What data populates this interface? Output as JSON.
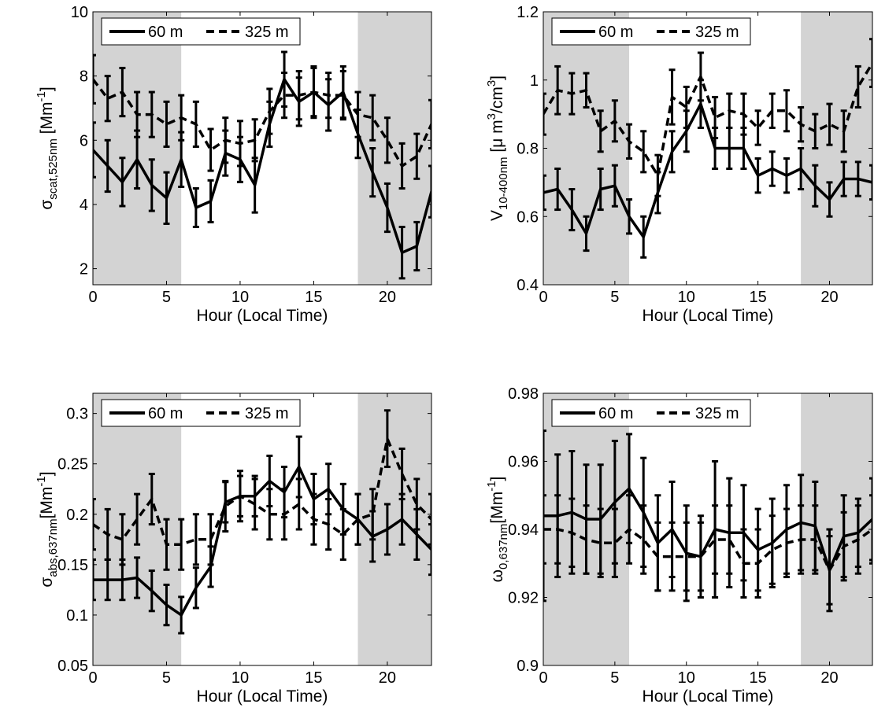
{
  "chart_data": [
    {
      "type": "line",
      "ylabel": "σ_scat,525nm [Mm^-1]",
      "ylabel_parts": {
        "sym": "σ",
        "sub": "scat,525nm",
        "unit_pre": " [Mm",
        "unit_sup": "-1",
        "unit_post": "]"
      },
      "xlabel": "Hour (Local Time)",
      "xlim": [
        0,
        23
      ],
      "ylim": [
        1.5,
        10
      ],
      "xticks": [
        0,
        5,
        10,
        15,
        20
      ],
      "yticks": [
        2,
        4,
        6,
        8,
        10
      ],
      "ytick_labels": [
        "2",
        "4",
        "6",
        "8",
        "10"
      ],
      "shaded_hours": [
        [
          0,
          6
        ],
        [
          18,
          23
        ]
      ],
      "legend": {
        "placement": "top-left",
        "labels": [
          "60 m",
          "325 m"
        ]
      },
      "x": [
        0,
        1,
        2,
        3,
        4,
        5,
        6,
        7,
        8,
        9,
        10,
        11,
        12,
        13,
        14,
        15,
        16,
        17,
        18,
        19,
        20,
        21,
        22,
        23
      ],
      "series": [
        {
          "name": "60 m",
          "style": "solid",
          "values": [
            5.7,
            5.2,
            4.7,
            5.4,
            4.6,
            4.2,
            5.4,
            3.9,
            4.1,
            5.6,
            5.4,
            4.6,
            6.5,
            7.9,
            7.2,
            7.5,
            7.1,
            7.5,
            6.2,
            5.0,
            3.9,
            2.5,
            2.7,
            4.4
          ],
          "errors": [
            0.85,
            0.8,
            0.75,
            0.9,
            0.8,
            0.8,
            0.85,
            0.6,
            0.65,
            0.7,
            0.7,
            0.85,
            0.7,
            0.85,
            0.75,
            0.8,
            0.8,
            0.8,
            0.75,
            0.75,
            0.75,
            0.8,
            0.75,
            0.8
          ]
        },
        {
          "name": "325 m",
          "style": "dashed",
          "values": [
            7.9,
            7.3,
            7.5,
            6.8,
            6.8,
            6.5,
            6.7,
            6.5,
            5.7,
            6.0,
            5.9,
            6.0,
            6.9,
            7.4,
            7.4,
            7.5,
            7.4,
            7.4,
            6.8,
            6.7,
            6.0,
            5.2,
            5.5,
            6.5
          ],
          "errors": [
            0.75,
            0.7,
            0.75,
            0.7,
            0.7,
            0.7,
            0.7,
            0.7,
            0.65,
            0.7,
            0.7,
            0.65,
            0.7,
            0.7,
            0.75,
            0.75,
            0.7,
            0.75,
            0.7,
            0.7,
            0.7,
            0.7,
            0.7,
            0.75
          ]
        }
      ]
    },
    {
      "type": "line",
      "ylabel": "V_10-400nm [μ m^3/cm^3]",
      "ylabel_parts": {
        "sym": "V",
        "sub": "10-400nm",
        "unit_pre": " [μ m",
        "unit_sup": "3",
        "unit_mid": "/cm",
        "unit_sup2": "3",
        "unit_post": "]"
      },
      "xlabel": "Hour (Local Time)",
      "xlim": [
        0,
        23
      ],
      "ylim": [
        0.4,
        1.2
      ],
      "xticks": [
        0,
        5,
        10,
        15,
        20
      ],
      "yticks": [
        0.4,
        0.6,
        0.8,
        1.0,
        1.2
      ],
      "ytick_labels": [
        "0.4",
        "0.6",
        "0.8",
        "1",
        "1.2"
      ],
      "shaded_hours": [
        [
          0,
          6
        ],
        [
          18,
          23
        ]
      ],
      "legend": {
        "placement": "top-left",
        "labels": [
          "60 m",
          "325 m"
        ]
      },
      "x": [
        0,
        1,
        2,
        3,
        4,
        5,
        6,
        7,
        8,
        9,
        10,
        11,
        12,
        13,
        14,
        15,
        16,
        17,
        18,
        19,
        20,
        21,
        22,
        23
      ],
      "series": [
        {
          "name": "60 m",
          "style": "solid",
          "values": [
            0.67,
            0.68,
            0.62,
            0.55,
            0.68,
            0.69,
            0.6,
            0.54,
            0.67,
            0.79,
            0.85,
            0.93,
            0.8,
            0.8,
            0.8,
            0.72,
            0.74,
            0.72,
            0.74,
            0.69,
            0.65,
            0.71,
            0.71,
            0.7
          ],
          "errors": [
            0.05,
            0.06,
            0.06,
            0.05,
            0.06,
            0.06,
            0.05,
            0.06,
            0.06,
            0.06,
            0.06,
            0.07,
            0.06,
            0.06,
            0.06,
            0.05,
            0.05,
            0.05,
            0.06,
            0.06,
            0.05,
            0.05,
            0.05,
            0.05
          ]
        },
        {
          "name": "325 m",
          "style": "dashed",
          "values": [
            0.9,
            0.97,
            0.96,
            0.97,
            0.85,
            0.88,
            0.82,
            0.79,
            0.72,
            0.95,
            0.92,
            1.01,
            0.89,
            0.91,
            0.9,
            0.86,
            0.91,
            0.91,
            0.87,
            0.85,
            0.87,
            0.85,
            0.98,
            1.05
          ],
          "errors": [
            0.06,
            0.07,
            0.06,
            0.05,
            0.06,
            0.06,
            0.05,
            0.06,
            0.06,
            0.08,
            0.06,
            0.07,
            0.06,
            0.05,
            0.06,
            0.05,
            0.05,
            0.06,
            0.05,
            0.05,
            0.06,
            0.06,
            0.06,
            0.07
          ]
        }
      ]
    },
    {
      "type": "line",
      "ylabel": "σ_abs,637nm [Mm^-1]",
      "ylabel_parts": {
        "sym": "σ",
        "sub": "abs,637nm",
        "unit_pre": "[Mm",
        "unit_sup": "-1",
        "unit_post": "]"
      },
      "xlabel": "Hour (Local Time)",
      "xlim": [
        0,
        23
      ],
      "ylim": [
        0.05,
        0.32
      ],
      "xticks": [
        0,
        5,
        10,
        15,
        20
      ],
      "yticks": [
        0.05,
        0.1,
        0.15,
        0.2,
        0.25,
        0.3
      ],
      "ytick_labels": [
        "0.05",
        "0.1",
        "0.15",
        "0.2",
        "0.25",
        "0.3"
      ],
      "shaded_hours": [
        [
          0,
          6
        ],
        [
          18,
          23
        ]
      ],
      "legend": {
        "placement": "top-left",
        "labels": [
          "60 m",
          "325 m"
        ]
      },
      "x": [
        0,
        1,
        2,
        3,
        4,
        5,
        6,
        7,
        8,
        9,
        10,
        11,
        12,
        13,
        14,
        15,
        16,
        17,
        18,
        19,
        20,
        21,
        22,
        23
      ],
      "series": [
        {
          "name": "60 m",
          "style": "solid",
          "values": [
            0.135,
            0.135,
            0.135,
            0.137,
            0.124,
            0.11,
            0.1,
            0.127,
            0.148,
            0.212,
            0.218,
            0.218,
            0.233,
            0.222,
            0.247,
            0.215,
            0.225,
            0.205,
            0.195,
            0.178,
            0.185,
            0.195,
            0.18,
            0.165
          ],
          "errors": [
            0.02,
            0.02,
            0.02,
            0.02,
            0.02,
            0.02,
            0.018,
            0.02,
            0.02,
            0.02,
            0.02,
            0.02,
            0.025,
            0.025,
            0.03,
            0.025,
            0.025,
            0.025,
            0.025,
            0.025,
            0.025,
            0.025,
            0.025,
            0.025
          ]
        },
        {
          "name": "325 m",
          "style": "dashed",
          "values": [
            0.19,
            0.18,
            0.175,
            0.195,
            0.215,
            0.17,
            0.17,
            0.175,
            0.175,
            0.208,
            0.218,
            0.21,
            0.2,
            0.2,
            0.21,
            0.195,
            0.19,
            0.18,
            0.195,
            0.2,
            0.275,
            0.24,
            0.21,
            0.195
          ],
          "errors": [
            0.025,
            0.025,
            0.025,
            0.025,
            0.025,
            0.025,
            0.025,
            0.025,
            0.025,
            0.025,
            0.025,
            0.025,
            0.025,
            0.025,
            0.025,
            0.025,
            0.025,
            0.025,
            0.025,
            0.025,
            0.028,
            0.025,
            0.025,
            0.025
          ]
        }
      ]
    },
    {
      "type": "line",
      "ylabel": "ω_0,637nm [Mm^-1]",
      "ylabel_parts": {
        "sym": "ω",
        "sub": "0,637nm",
        "unit_pre": "[Mm",
        "unit_sup": "-1",
        "unit_post": "]"
      },
      "xlabel": "Hour (Local Time)",
      "xlim": [
        0,
        23
      ],
      "ylim": [
        0.9,
        0.98
      ],
      "xticks": [
        0,
        5,
        10,
        15,
        20
      ],
      "yticks": [
        0.9,
        0.92,
        0.94,
        0.96,
        0.98
      ],
      "ytick_labels": [
        "0.9",
        "0.92",
        "0.94",
        "0.96",
        "0.98"
      ],
      "shaded_hours": [
        [
          0,
          6
        ],
        [
          18,
          23
        ]
      ],
      "legend": {
        "placement": "top-left",
        "labels": [
          "60 m",
          "325 m"
        ]
      },
      "x": [
        0,
        1,
        2,
        3,
        4,
        5,
        6,
        7,
        8,
        9,
        10,
        11,
        12,
        13,
        14,
        15,
        16,
        17,
        18,
        19,
        20,
        21,
        22,
        23
      ],
      "series": [
        {
          "name": "60 m",
          "style": "solid",
          "values": [
            0.944,
            0.944,
            0.945,
            0.943,
            0.943,
            0.948,
            0.952,
            0.945,
            0.936,
            0.94,
            0.933,
            0.932,
            0.94,
            0.939,
            0.939,
            0.934,
            0.936,
            0.94,
            0.942,
            0.941,
            0.928,
            0.938,
            0.939,
            0.943
          ],
          "errors": [
            0.025,
            0.018,
            0.018,
            0.016,
            0.016,
            0.018,
            0.016,
            0.016,
            0.014,
            0.014,
            0.014,
            0.012,
            0.02,
            0.016,
            0.014,
            0.012,
            0.013,
            0.013,
            0.014,
            0.013,
            0.012,
            0.012,
            0.01,
            0.012
          ]
        },
        {
          "name": "325 m",
          "style": "dashed",
          "values": [
            0.94,
            0.94,
            0.939,
            0.937,
            0.936,
            0.936,
            0.94,
            0.937,
            0.932,
            0.932,
            0.932,
            0.932,
            0.937,
            0.937,
            0.93,
            0.93,
            0.934,
            0.936,
            0.937,
            0.937,
            0.928,
            0.935,
            0.937,
            0.94
          ],
          "errors": [
            0.01,
            0.01,
            0.01,
            0.01,
            0.01,
            0.01,
            0.01,
            0.01,
            0.01,
            0.01,
            0.01,
            0.01,
            0.01,
            0.01,
            0.01,
            0.01,
            0.01,
            0.01,
            0.01,
            0.01,
            0.01,
            0.01,
            0.01,
            0.01
          ]
        }
      ]
    }
  ]
}
